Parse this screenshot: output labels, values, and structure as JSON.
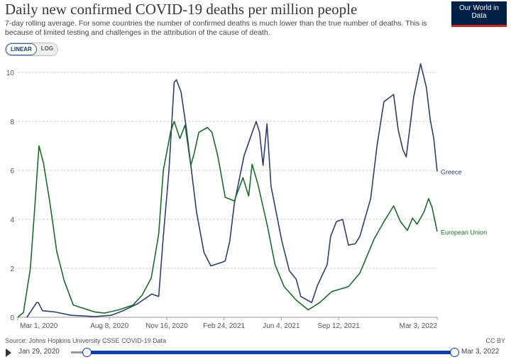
{
  "header": {
    "title": "Daily new confirmed COVID-19 deaths per million people",
    "subtitle": "7-day rolling average. For some countries the number of confirmed deaths is much lower than the true number of deaths. This is because of limited testing and challenges in the attribution of the cause of death.",
    "logo_text": "Our World in Data",
    "scale_options": [
      "LINEAR",
      "LOG"
    ],
    "selected_scale": "LINEAR"
  },
  "footer": {
    "source": "Source: Johns Hopkins University CSSE COVID-19 Data",
    "license": "CC BY"
  },
  "timeline": {
    "start_label": "Jan 29, 2020",
    "end_label": "Mar 3, 2022",
    "start_fraction": 0.0,
    "end_fraction": 1.0
  },
  "chart_data": {
    "type": "line",
    "title": "Daily new confirmed COVID-19 deaths per million people",
    "xlabel": "",
    "ylabel": "",
    "ylim": [
      0,
      10
    ],
    "xlim": [
      "2020-03-01",
      "2022-03-03"
    ],
    "y_ticks": [
      "0",
      "2",
      "4",
      "6",
      "8",
      "10"
    ],
    "x_ticks": [
      {
        "date": "2020-03-01",
        "label": "Mar 1, 2020"
      },
      {
        "date": "2020-08-08",
        "label": "Aug 8, 2020"
      },
      {
        "date": "2020-11-16",
        "label": "Nov 16, 2020"
      },
      {
        "date": "2021-02-24",
        "label": "Feb 24, 2021"
      },
      {
        "date": "2021-06-04",
        "label": "Jun 4, 2021"
      },
      {
        "date": "2021-09-12",
        "label": "Sep 12, 2021"
      },
      {
        "date": "2022-03-03",
        "label": "Mar 3, 2022"
      }
    ],
    "grid": "horizontal dashed",
    "legend": "end-of-line labels",
    "series": [
      {
        "name": "Greece",
        "color": "#2c3e73",
        "points": [
          [
            "2020-03-17",
            0
          ],
          [
            "2020-04-03",
            0.6
          ],
          [
            "2020-04-06",
            0.6
          ],
          [
            "2020-04-13",
            0.27
          ],
          [
            "2020-05-04",
            0.22
          ],
          [
            "2020-06-02",
            0.08
          ],
          [
            "2020-07-13",
            0.03
          ],
          [
            "2020-08-11",
            0.08
          ],
          [
            "2020-09-01",
            0.27
          ],
          [
            "2020-09-26",
            0.55
          ],
          [
            "2020-10-21",
            0.95
          ],
          [
            "2020-11-02",
            0.85
          ],
          [
            "2020-11-10",
            3.3
          ],
          [
            "2020-11-20",
            6.0
          ],
          [
            "2020-11-29",
            9.6
          ],
          [
            "2020-12-03",
            9.7
          ],
          [
            "2020-12-11",
            9.2
          ],
          [
            "2020-12-20",
            7.75
          ],
          [
            "2020-12-26",
            6.6
          ],
          [
            "2021-01-07",
            4.3
          ],
          [
            "2021-01-20",
            2.65
          ],
          [
            "2021-02-01",
            2.1
          ],
          [
            "2021-02-21",
            2.25
          ],
          [
            "2021-02-26",
            2.3
          ],
          [
            "2021-03-06",
            3.1
          ],
          [
            "2021-03-14",
            4.65
          ],
          [
            "2021-03-31",
            6.6
          ],
          [
            "2021-04-12",
            7.4
          ],
          [
            "2021-04-21",
            8.0
          ],
          [
            "2021-04-27",
            7.55
          ],
          [
            "2021-05-03",
            6.2
          ],
          [
            "2021-05-10",
            7.9
          ],
          [
            "2021-05-17",
            5.35
          ],
          [
            "2021-06-05",
            3.1
          ],
          [
            "2021-06-18",
            1.9
          ],
          [
            "2021-06-30",
            1.55
          ],
          [
            "2021-07-08",
            0.85
          ],
          [
            "2021-07-27",
            0.6
          ],
          [
            "2021-08-06",
            1.3
          ],
          [
            "2021-08-23",
            2.15
          ],
          [
            "2021-08-29",
            3.3
          ],
          [
            "2021-09-08",
            3.9
          ],
          [
            "2021-09-19",
            4.0
          ],
          [
            "2021-09-29",
            2.95
          ],
          [
            "2021-10-11",
            3.0
          ],
          [
            "2021-10-19",
            3.3
          ],
          [
            "2021-11-07",
            4.85
          ],
          [
            "2021-11-18",
            7.0
          ],
          [
            "2021-11-30",
            8.8
          ],
          [
            "2021-12-17",
            9.1
          ],
          [
            "2021-12-25",
            7.65
          ],
          [
            "2022-01-02",
            6.85
          ],
          [
            "2022-01-08",
            6.55
          ],
          [
            "2022-01-21",
            9.0
          ],
          [
            "2022-02-02",
            10.35
          ],
          [
            "2022-02-12",
            9.4
          ],
          [
            "2022-02-19",
            8.05
          ],
          [
            "2022-02-25",
            7.3
          ],
          [
            "2022-03-03",
            5.95
          ]
        ]
      },
      {
        "name": "European Union",
        "color": "#1a6b2a",
        "points": [
          [
            "2020-03-01",
            0
          ],
          [
            "2020-03-11",
            0.2
          ],
          [
            "2020-03-23",
            2.0
          ],
          [
            "2020-04-01",
            4.9
          ],
          [
            "2020-04-07",
            7.0
          ],
          [
            "2020-04-15",
            6.3
          ],
          [
            "2020-04-26",
            4.7
          ],
          [
            "2020-05-08",
            2.7
          ],
          [
            "2020-05-21",
            1.5
          ],
          [
            "2020-06-06",
            0.5
          ],
          [
            "2020-07-13",
            0.22
          ],
          [
            "2020-07-30",
            0.17
          ],
          [
            "2020-08-24",
            0.3
          ],
          [
            "2020-09-18",
            0.5
          ],
          [
            "2020-10-04",
            0.9
          ],
          [
            "2020-10-20",
            1.6
          ],
          [
            "2020-11-02",
            3.4
          ],
          [
            "2020-11-10",
            6.0
          ],
          [
            "2020-11-23",
            7.6
          ],
          [
            "2020-11-29",
            8.0
          ],
          [
            "2020-12-09",
            7.3
          ],
          [
            "2020-12-18",
            7.85
          ],
          [
            "2020-12-28",
            6.2
          ],
          [
            "2021-01-03",
            6.7
          ],
          [
            "2021-01-11",
            7.55
          ],
          [
            "2021-01-26",
            7.75
          ],
          [
            "2021-02-03",
            7.55
          ],
          [
            "2021-02-13",
            6.6
          ],
          [
            "2021-02-20",
            5.7
          ],
          [
            "2021-02-26",
            4.9
          ],
          [
            "2021-03-14",
            4.75
          ],
          [
            "2021-03-29",
            5.7
          ],
          [
            "2021-04-08",
            4.95
          ],
          [
            "2021-04-14",
            6.25
          ],
          [
            "2021-04-24",
            5.45
          ],
          [
            "2021-05-11",
            3.7
          ],
          [
            "2021-05-24",
            2.15
          ],
          [
            "2021-06-09",
            1.25
          ],
          [
            "2021-06-30",
            0.7
          ],
          [
            "2021-07-21",
            0.3
          ],
          [
            "2021-08-10",
            0.6
          ],
          [
            "2021-08-31",
            1.05
          ],
          [
            "2021-09-29",
            1.25
          ],
          [
            "2021-10-19",
            1.8
          ],
          [
            "2021-11-13",
            3.2
          ],
          [
            "2021-11-30",
            3.9
          ],
          [
            "2021-12-17",
            4.55
          ],
          [
            "2021-12-29",
            3.9
          ],
          [
            "2022-01-10",
            3.55
          ],
          [
            "2022-01-19",
            4.05
          ],
          [
            "2022-01-27",
            3.8
          ],
          [
            "2022-02-08",
            4.3
          ],
          [
            "2022-02-16",
            4.85
          ],
          [
            "2022-02-22",
            4.5
          ],
          [
            "2022-03-03",
            3.5
          ]
        ]
      }
    ]
  }
}
